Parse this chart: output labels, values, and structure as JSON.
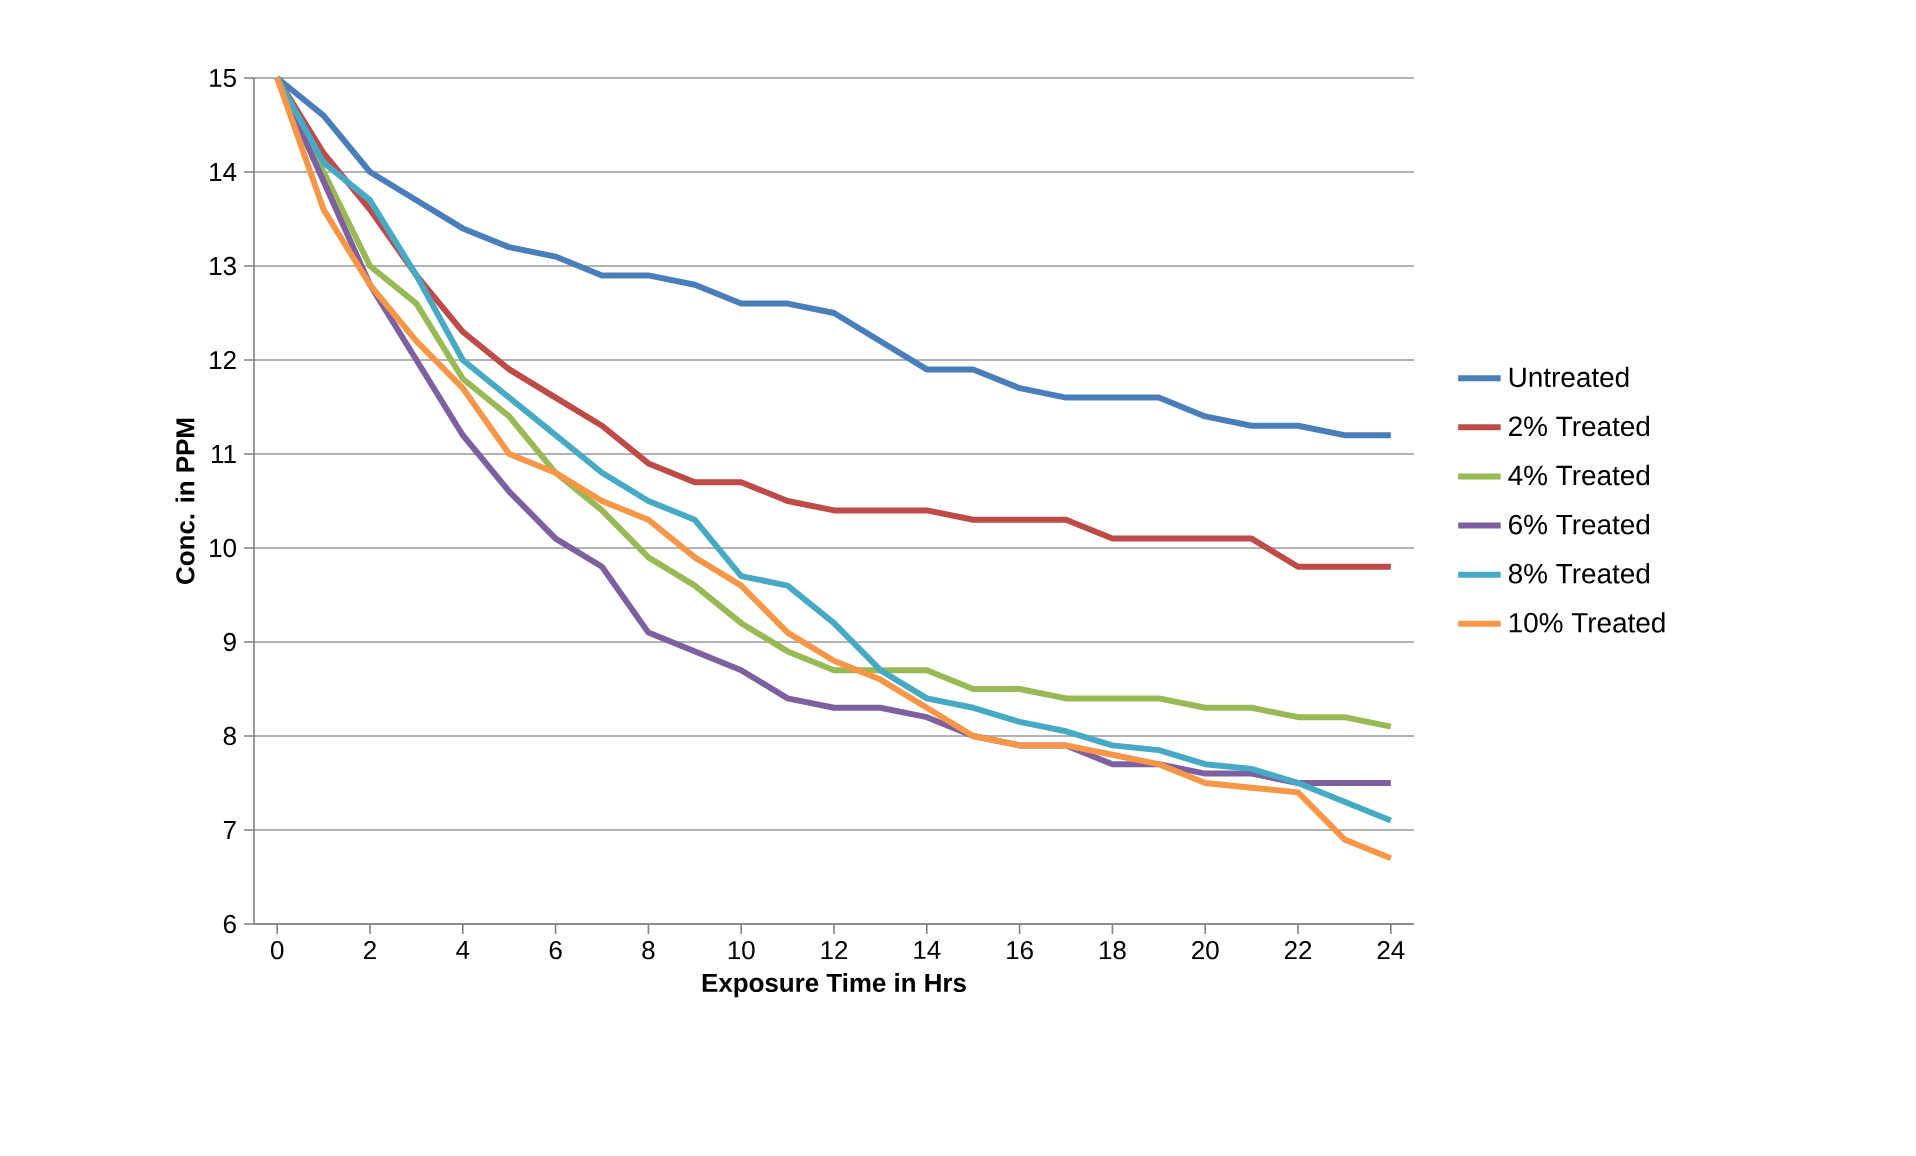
{
  "chart_data": {
    "type": "line",
    "xlabel": "Exposure Time in Hrs",
    "ylabel": "Conc. in PPM",
    "x": [
      0,
      1,
      2,
      3,
      4,
      5,
      6,
      7,
      8,
      9,
      10,
      11,
      12,
      13,
      14,
      15,
      16,
      17,
      18,
      19,
      20,
      21,
      22,
      23,
      24
    ],
    "xlim": [
      -0.5,
      24.5
    ],
    "xticks": [
      0,
      2,
      4,
      6,
      8,
      10,
      12,
      14,
      16,
      18,
      20,
      22,
      24
    ],
    "ylim": [
      6,
      15
    ],
    "yticks": [
      6,
      7,
      8,
      9,
      10,
      11,
      12,
      13,
      14,
      15
    ],
    "grid": "y",
    "legend": "right",
    "marker": "none",
    "line_style": "solid",
    "series": [
      {
        "name": "Untreated",
        "color": "#4a7ebb",
        "values": [
          15,
          14.6,
          14.0,
          13.7,
          13.4,
          13.2,
          13.1,
          12.9,
          12.9,
          12.8,
          12.6,
          12.6,
          12.5,
          12.2,
          11.9,
          11.9,
          11.7,
          11.6,
          11.6,
          11.6,
          11.4,
          11.3,
          11.3,
          11.2,
          11.2
        ]
      },
      {
        "name": "2% Treated",
        "color": "#be4b48",
        "values": [
          15,
          14.2,
          13.6,
          12.9,
          12.3,
          11.9,
          11.6,
          11.3,
          10.9,
          10.7,
          10.7,
          10.5,
          10.4,
          10.4,
          10.4,
          10.3,
          10.3,
          10.3,
          10.1,
          10.1,
          10.1,
          10.1,
          9.8,
          9.8,
          9.8
        ]
      },
      {
        "name": "4% Treated",
        "color": "#98b954",
        "values": [
          15,
          14.0,
          13.0,
          12.6,
          11.8,
          11.4,
          10.8,
          10.4,
          9.9,
          9.6,
          9.2,
          8.9,
          8.7,
          8.7,
          8.7,
          8.5,
          8.5,
          8.4,
          8.4,
          8.4,
          8.3,
          8.3,
          8.2,
          8.2,
          8.1
        ]
      },
      {
        "name": "6% Treated",
        "color": "#7d60a0",
        "values": [
          15,
          13.9,
          12.8,
          12.0,
          11.2,
          10.6,
          10.1,
          9.8,
          9.1,
          8.9,
          8.7,
          8.4,
          8.3,
          8.3,
          8.2,
          8.0,
          7.9,
          7.9,
          7.7,
          7.7,
          7.6,
          7.6,
          7.5,
          7.5,
          7.5
        ]
      },
      {
        "name": "8% Treated",
        "color": "#46aac5",
        "values": [
          15,
          14.1,
          13.7,
          12.9,
          12.0,
          11.6,
          11.2,
          10.8,
          10.5,
          10.3,
          9.7,
          9.6,
          9.2,
          8.7,
          8.4,
          8.3,
          8.15,
          8.05,
          7.9,
          7.85,
          7.7,
          7.65,
          7.5,
          7.3,
          7.1
        ]
      },
      {
        "name": "10% Treated",
        "color": "#f79646",
        "values": [
          15,
          13.6,
          12.8,
          12.2,
          11.7,
          11.0,
          10.8,
          10.5,
          10.3,
          9.9,
          9.6,
          9.1,
          8.8,
          8.6,
          8.3,
          8.0,
          7.9,
          7.9,
          7.8,
          7.7,
          7.5,
          7.45,
          7.4,
          6.9,
          6.7
        ]
      }
    ]
  }
}
